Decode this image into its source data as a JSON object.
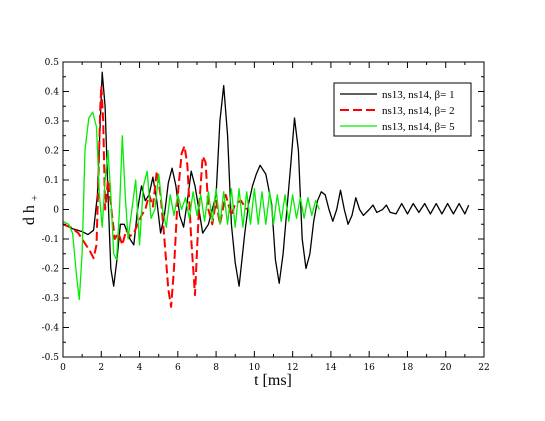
{
  "chart_data": {
    "type": "line",
    "title": "",
    "xlabel": "t [ms]",
    "ylabel": "d h+",
    "ylabel_main": "d h",
    "ylabel_sub": "+",
    "xlim": [
      0,
      22
    ],
    "ylim": [
      -0.5,
      0.5
    ],
    "xticks": [
      0,
      2,
      4,
      6,
      8,
      10,
      12,
      14,
      16,
      18,
      20,
      22
    ],
    "yticks": [
      -0.5,
      -0.4,
      -0.3,
      -0.2,
      -0.1,
      0,
      0.1,
      0.2,
      0.3,
      0.4,
      0.5
    ],
    "xtick_labels": [
      "0",
      "2",
      "4",
      "6",
      "8",
      "10",
      "12",
      "14",
      "16",
      "18",
      "20",
      "22"
    ],
    "ytick_labels": [
      "-0.5",
      "-0.4",
      "-0.3",
      "-0.2",
      "-0.1",
      "0",
      "0.1",
      "0.2",
      "0.3",
      "0.4",
      "0.5"
    ],
    "grid": false,
    "legend_position": "top-right",
    "series": [
      {
        "name": "ns13, ns14, β= 1",
        "color": "#000000",
        "dash": "solid",
        "points": [
          [
            0.0,
            -0.05
          ],
          [
            0.5,
            -0.065
          ],
          [
            1.0,
            -0.075
          ],
          [
            1.3,
            -0.085
          ],
          [
            1.6,
            -0.07
          ],
          [
            1.8,
            0.05
          ],
          [
            1.95,
            0.3
          ],
          [
            2.05,
            0.465
          ],
          [
            2.2,
            0.35
          ],
          [
            2.35,
            0.05
          ],
          [
            2.5,
            -0.2
          ],
          [
            2.65,
            -0.26
          ],
          [
            2.8,
            -0.18
          ],
          [
            3.0,
            -0.05
          ],
          [
            3.2,
            -0.05
          ],
          [
            3.5,
            -0.1
          ],
          [
            3.7,
            -0.12
          ],
          [
            3.9,
            0.0
          ],
          [
            4.1,
            0.08
          ],
          [
            4.3,
            0.03
          ],
          [
            4.5,
            0.05
          ],
          [
            4.7,
            0.11
          ],
          [
            4.9,
            0.03
          ],
          [
            5.1,
            -0.08
          ],
          [
            5.3,
            -0.02
          ],
          [
            5.5,
            0.09
          ],
          [
            5.7,
            0.14
          ],
          [
            5.9,
            0.08
          ],
          [
            6.1,
            -0.02
          ],
          [
            6.3,
            -0.06
          ],
          [
            6.5,
            0.03
          ],
          [
            6.7,
            0.13
          ],
          [
            6.9,
            0.08
          ],
          [
            7.1,
            0.0
          ],
          [
            7.3,
            -0.08
          ],
          [
            7.6,
            -0.05
          ],
          [
            7.8,
            0.0
          ],
          [
            8.0,
            0.05
          ],
          [
            8.2,
            0.3
          ],
          [
            8.4,
            0.42
          ],
          [
            8.6,
            0.25
          ],
          [
            8.8,
            -0.05
          ],
          [
            9.0,
            -0.18
          ],
          [
            9.2,
            -0.26
          ],
          [
            9.5,
            -0.08
          ],
          [
            9.7,
            0.02
          ],
          [
            9.9,
            0.08
          ],
          [
            10.1,
            0.12
          ],
          [
            10.3,
            0.15
          ],
          [
            10.6,
            0.12
          ],
          [
            10.9,
            0.02
          ],
          [
            11.1,
            -0.17
          ],
          [
            11.3,
            -0.25
          ],
          [
            11.5,
            -0.15
          ],
          [
            11.7,
            0.0
          ],
          [
            11.9,
            0.15
          ],
          [
            12.1,
            0.31
          ],
          [
            12.3,
            0.2
          ],
          [
            12.5,
            -0.1
          ],
          [
            12.7,
            -0.2
          ],
          [
            12.9,
            -0.15
          ],
          [
            13.1,
            -0.04
          ],
          [
            13.3,
            0.03
          ],
          [
            13.5,
            0.06
          ],
          [
            13.7,
            0.05
          ],
          [
            13.9,
            0.0
          ],
          [
            14.1,
            -0.04
          ],
          [
            14.3,
            0.0
          ],
          [
            14.5,
            0.065
          ],
          [
            14.7,
            0.0
          ],
          [
            14.9,
            -0.05
          ],
          [
            15.1,
            -0.02
          ],
          [
            15.3,
            0.04
          ],
          [
            15.5,
            0.0
          ],
          [
            15.7,
            -0.02
          ],
          [
            16.0,
            0.0
          ],
          [
            16.2,
            0.015
          ],
          [
            16.4,
            -0.01
          ],
          [
            16.7,
            0.0
          ],
          [
            16.9,
            0.015
          ],
          [
            17.1,
            -0.01
          ],
          [
            17.4,
            -0.015
          ],
          [
            17.7,
            0.02
          ],
          [
            18.0,
            -0.015
          ],
          [
            18.3,
            0.02
          ],
          [
            18.6,
            -0.01
          ],
          [
            18.9,
            0.02
          ],
          [
            19.2,
            -0.015
          ],
          [
            19.5,
            0.02
          ],
          [
            19.8,
            -0.015
          ],
          [
            20.1,
            0.02
          ],
          [
            20.4,
            -0.015
          ],
          [
            20.7,
            0.02
          ],
          [
            21.0,
            -0.015
          ],
          [
            21.2,
            0.015
          ]
        ]
      },
      {
        "name": "ns13, ns14, β= 2",
        "color": "#ff0000",
        "dash": "dashed",
        "points": [
          [
            0.0,
            -0.05
          ],
          [
            0.4,
            -0.06
          ],
          [
            0.8,
            -0.08
          ],
          [
            1.1,
            -0.11
          ],
          [
            1.4,
            -0.14
          ],
          [
            1.6,
            -0.165
          ],
          [
            1.75,
            -0.12
          ],
          [
            1.85,
            0.1
          ],
          [
            1.95,
            0.35
          ],
          [
            2.0,
            0.42
          ],
          [
            2.1,
            0.3
          ],
          [
            2.2,
            0.0
          ],
          [
            2.35,
            0.1
          ],
          [
            2.5,
            0.02
          ],
          [
            2.7,
            -0.1
          ],
          [
            2.9,
            -0.08
          ],
          [
            3.1,
            -0.12
          ],
          [
            3.3,
            -0.07
          ],
          [
            3.5,
            -0.09
          ],
          [
            3.7,
            -0.08
          ],
          [
            3.9,
            -0.05
          ],
          [
            4.1,
            -0.02
          ],
          [
            4.3,
            0.0
          ],
          [
            4.5,
            0.05
          ],
          [
            4.7,
            0.01
          ],
          [
            4.9,
            0.13
          ],
          [
            5.1,
            0.05
          ],
          [
            5.3,
            -0.1
          ],
          [
            5.5,
            -0.27
          ],
          [
            5.65,
            -0.33
          ],
          [
            5.8,
            -0.2
          ],
          [
            6.0,
            0.05
          ],
          [
            6.2,
            0.19
          ],
          [
            6.35,
            0.215
          ],
          [
            6.5,
            0.15
          ],
          [
            6.7,
            -0.1
          ],
          [
            6.9,
            -0.29
          ],
          [
            7.1,
            0.0
          ],
          [
            7.3,
            0.18
          ],
          [
            7.45,
            0.16
          ],
          [
            7.6,
            0.0
          ],
          [
            7.8,
            -0.05
          ],
          [
            8.0,
            0.03
          ],
          [
            8.2,
            -0.05
          ],
          [
            8.5,
            0.05
          ],
          [
            8.8,
            -0.02
          ],
          [
            9.0,
            0.02
          ],
          [
            9.3,
            0.03
          ],
          [
            9.6,
            0.0
          ]
        ]
      },
      {
        "name": "ns13, ns14, β= 5",
        "color": "#00ee00",
        "dash": "solid",
        "points": [
          [
            0.0,
            -0.04
          ],
          [
            0.3,
            -0.05
          ],
          [
            0.5,
            -0.08
          ],
          [
            0.7,
            -0.22
          ],
          [
            0.85,
            -0.305
          ],
          [
            1.0,
            -0.15
          ],
          [
            1.15,
            0.2
          ],
          [
            1.35,
            0.31
          ],
          [
            1.55,
            0.33
          ],
          [
            1.75,
            0.28
          ],
          [
            1.9,
            0.05
          ],
          [
            2.05,
            -0.06
          ],
          [
            2.2,
            0.1
          ],
          [
            2.35,
            0.2
          ],
          [
            2.5,
            0.05
          ],
          [
            2.65,
            -0.15
          ],
          [
            2.8,
            -0.17
          ],
          [
            2.95,
            0.0
          ],
          [
            3.1,
            0.25
          ],
          [
            3.25,
            0.05
          ],
          [
            3.4,
            -0.1
          ],
          [
            3.6,
            0.0
          ],
          [
            3.8,
            0.1
          ],
          [
            4.0,
            -0.12
          ],
          [
            4.2,
            0.08
          ],
          [
            4.4,
            0.13
          ],
          [
            4.6,
            -0.03
          ],
          [
            4.8,
            0.0
          ],
          [
            5.0,
            0.12
          ],
          [
            5.2,
            0.0
          ],
          [
            5.4,
            -0.06
          ],
          [
            5.6,
            0.05
          ],
          [
            5.8,
            -0.02
          ],
          [
            6.0,
            0.05
          ],
          [
            6.2,
            0.0
          ],
          [
            6.4,
            0.04
          ],
          [
            6.6,
            -0.03
          ],
          [
            6.8,
            0.06
          ],
          [
            7.0,
            -0.02
          ],
          [
            7.2,
            0.05
          ],
          [
            7.4,
            -0.04
          ],
          [
            7.6,
            0.06
          ],
          [
            7.8,
            -0.04
          ],
          [
            8.0,
            0.07
          ],
          [
            8.2,
            -0.05
          ],
          [
            8.4,
            0.06
          ],
          [
            8.6,
            -0.05
          ],
          [
            8.8,
            0.07
          ],
          [
            9.0,
            -0.06
          ],
          [
            9.2,
            0.07
          ],
          [
            9.4,
            -0.06
          ],
          [
            9.6,
            0.06
          ],
          [
            9.8,
            -0.05
          ],
          [
            10.0,
            0.07
          ],
          [
            10.2,
            -0.05
          ],
          [
            10.4,
            0.06
          ],
          [
            10.6,
            -0.05
          ],
          [
            10.8,
            0.06
          ],
          [
            11.0,
            -0.05
          ],
          [
            11.2,
            0.05
          ],
          [
            11.4,
            -0.04
          ],
          [
            11.6,
            0.05
          ],
          [
            11.8,
            -0.04
          ],
          [
            12.0,
            0.05
          ],
          [
            12.2,
            -0.03
          ],
          [
            12.4,
            0.04
          ],
          [
            12.6,
            -0.03
          ],
          [
            12.8,
            0.04
          ],
          [
            13.0,
            -0.02
          ],
          [
            13.2,
            0.03
          ],
          [
            13.4,
            0.0
          ]
        ]
      }
    ]
  }
}
